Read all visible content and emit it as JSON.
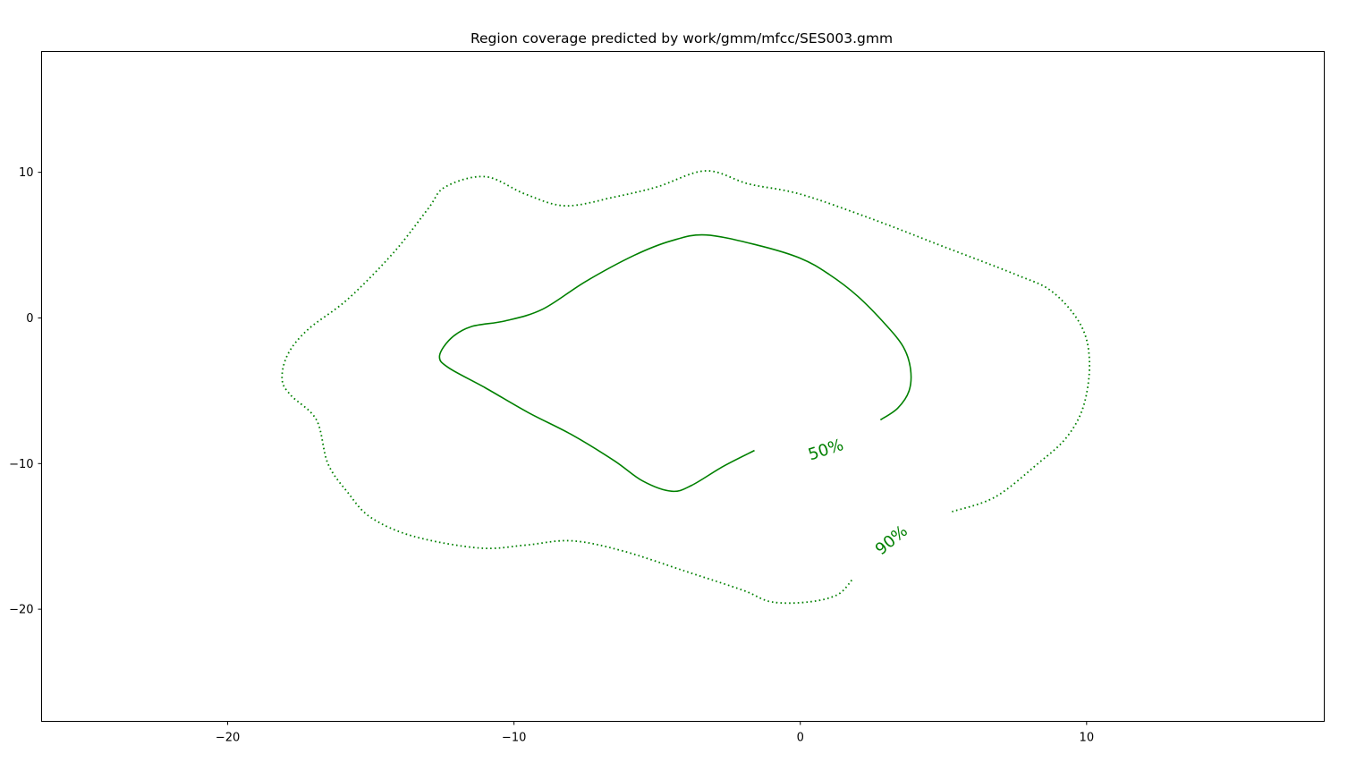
{
  "chart_data": {
    "type": "line",
    "title": "Region coverage predicted by work/gmm/mfcc/SES003.gmm",
    "xlabel": "",
    "ylabel": "",
    "xlim": [
      -26.5,
      18.3
    ],
    "ylim": [
      -27.7,
      18.3
    ],
    "x_ticks": [
      -20,
      -10,
      0,
      10
    ],
    "y_ticks": [
      10,
      0,
      -10,
      -20
    ],
    "x_tick_labels": [
      "−20",
      "−10",
      "0",
      "10"
    ],
    "y_tick_labels": [
      "10",
      "0",
      "−10",
      "−20"
    ],
    "grid": false,
    "line_color": "#008000",
    "series": [
      {
        "label": "50%",
        "style": "solid",
        "label_at": [
          0.9,
          -9.1
        ],
        "label_rotation": -18,
        "points": [
          [
            2.8,
            -7.0
          ],
          [
            3.4,
            -6.2
          ],
          [
            3.8,
            -5.0
          ],
          [
            3.85,
            -3.5
          ],
          [
            3.6,
            -2.0
          ],
          [
            3.0,
            -0.5
          ],
          [
            2.0,
            1.5
          ],
          [
            1.0,
            3.0
          ],
          [
            0.0,
            4.1
          ],
          [
            -1.5,
            5.0
          ],
          [
            -3.3,
            5.7
          ],
          [
            -4.5,
            5.3
          ],
          [
            -5.8,
            4.3
          ],
          [
            -7.5,
            2.5
          ],
          [
            -9.0,
            0.6
          ],
          [
            -10.3,
            -0.2
          ],
          [
            -11.5,
            -0.6
          ],
          [
            -12.2,
            -1.4
          ],
          [
            -12.6,
            -2.6
          ],
          [
            -12.3,
            -3.4
          ],
          [
            -11.0,
            -4.8
          ],
          [
            -9.5,
            -6.5
          ],
          [
            -8.0,
            -8.0
          ],
          [
            -6.5,
            -9.8
          ],
          [
            -5.5,
            -11.2
          ],
          [
            -4.5,
            -11.9
          ],
          [
            -3.8,
            -11.5
          ],
          [
            -2.7,
            -10.2
          ],
          [
            -1.6,
            -9.1
          ]
        ]
      },
      {
        "label": "90%",
        "style": "dotted",
        "label_at": [
          3.2,
          -15.3
        ],
        "label_rotation": -40,
        "points": [
          [
            5.3,
            -13.3
          ],
          [
            6.8,
            -12.3
          ],
          [
            8.3,
            -10.0
          ],
          [
            9.3,
            -8.2
          ],
          [
            9.9,
            -6.0
          ],
          [
            10.1,
            -3.0
          ],
          [
            9.8,
            -0.5
          ],
          [
            8.8,
            1.8
          ],
          [
            7.5,
            3.0
          ],
          [
            5.0,
            4.9
          ],
          [
            2.5,
            6.8
          ],
          [
            0.0,
            8.5
          ],
          [
            -1.8,
            9.2
          ],
          [
            -3.3,
            10.1
          ],
          [
            -5.0,
            9.0
          ],
          [
            -6.5,
            8.3
          ],
          [
            -8.2,
            7.7
          ],
          [
            -9.6,
            8.5
          ],
          [
            -11.0,
            9.7
          ],
          [
            -12.4,
            9.0
          ],
          [
            -13.0,
            7.5
          ],
          [
            -14.2,
            4.5
          ],
          [
            -15.8,
            1.3
          ],
          [
            -17.2,
            -0.8
          ],
          [
            -17.9,
            -2.5
          ],
          [
            -18.1,
            -4.2
          ],
          [
            -17.8,
            -5.3
          ],
          [
            -16.9,
            -7.0
          ],
          [
            -16.5,
            -10.0
          ],
          [
            -15.8,
            -12.0
          ],
          [
            -15.0,
            -13.7
          ],
          [
            -13.5,
            -15.0
          ],
          [
            -11.2,
            -15.8
          ],
          [
            -9.6,
            -15.6
          ],
          [
            -8.0,
            -15.3
          ],
          [
            -6.2,
            -16.0
          ],
          [
            -4.0,
            -17.4
          ],
          [
            -2.0,
            -18.7
          ],
          [
            -1.0,
            -19.5
          ],
          [
            0.3,
            -19.5
          ],
          [
            1.3,
            -19.0
          ],
          [
            1.8,
            -18.0
          ]
        ]
      }
    ]
  }
}
